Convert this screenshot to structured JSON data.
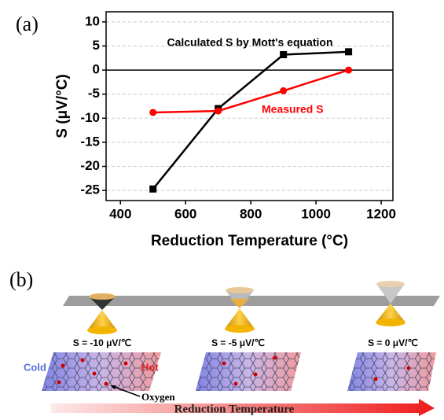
{
  "panel_labels": [
    "(a)",
    "(b)"
  ],
  "chart_data": {
    "type": "line",
    "x_label": "Reduction Temperature (°C)",
    "y_label": "S (μV/°C)",
    "x": [
      500,
      700,
      900,
      1100
    ],
    "series": [
      {
        "name": "Calculated S by Mott's equation",
        "color": "#000000",
        "marker": "square",
        "values": [
          -24.7,
          -8,
          3.2,
          3.8
        ]
      },
      {
        "name": "Measured S",
        "color": "#ff0000",
        "marker": "circle",
        "values": [
          -8.8,
          -8.5,
          -4.3,
          0
        ]
      }
    ],
    "xlim": [
      356,
      1236
    ],
    "xticks": [
      400,
      600,
      800,
      1000,
      1200
    ],
    "ylim": [
      -27.1,
      12.1
    ],
    "yticks": [
      10,
      5,
      0,
      -5,
      -10,
      -15,
      -20,
      -25
    ],
    "grid": true,
    "zero_line": true
  },
  "diagram": {
    "states": [
      "S = -10 μV/℃",
      "S = -5 μV/℃",
      "S = 0 μV/℃"
    ],
    "cold": "Cold",
    "hot": "Hot",
    "oxygen": "Oxygen",
    "arrow": "Reduction Temperature"
  }
}
